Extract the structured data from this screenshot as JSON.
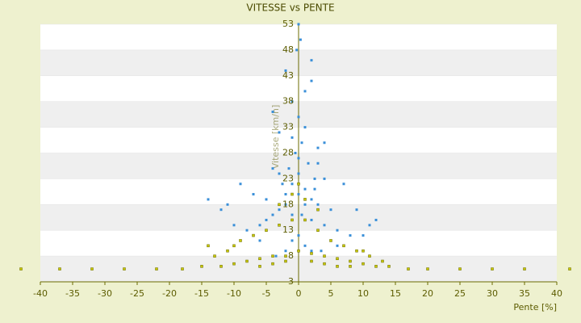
{
  "chart_data": {
    "type": "scatter",
    "title": "VITESSE vs PENTE",
    "x_label": "Pente [%]",
    "y_label": "Vitesse [km/h]",
    "xlim": [
      -40,
      40
    ],
    "xticks": [
      -40,
      -35,
      -30,
      -25,
      -20,
      -15,
      -10,
      -5,
      0,
      5,
      10,
      15,
      20,
      25,
      30,
      35,
      40
    ],
    "ylim": [
      3,
      53
    ],
    "yticks": [
      3,
      8,
      13,
      18,
      23,
      28,
      33,
      38,
      43,
      48,
      53
    ],
    "series": [
      {
        "color": "#3a8fd8",
        "x": [
          -2,
          -1,
          0,
          1,
          2,
          3,
          -3,
          -4,
          -5,
          0.5,
          -0.5,
          1.5,
          -1.5,
          2.5,
          -2.5,
          4,
          -6,
          6,
          0,
          -1,
          1,
          -3,
          3,
          -8,
          8,
          -10,
          10,
          -12,
          -14,
          12,
          -7,
          7,
          -2,
          2,
          0,
          0.3,
          -0.3,
          2,
          -4,
          4,
          0,
          1,
          -1,
          3,
          -3,
          2.5,
          -2,
          0.5,
          -5,
          5,
          -9,
          9,
          -11,
          11,
          1,
          -1,
          0,
          6,
          -6,
          2,
          -2,
          3.5,
          -3.5,
          0,
          1,
          -1,
          2,
          -0.5,
          4,
          -4
        ],
        "values": [
          20,
          22,
          24,
          21,
          19,
          18,
          17,
          16,
          15,
          30,
          28,
          26,
          25,
          23,
          22,
          14,
          14,
          13,
          35,
          38,
          40,
          32,
          29,
          13,
          12,
          14,
          12,
          17,
          19,
          15,
          20,
          22,
          44,
          46,
          53,
          50,
          48,
          42,
          36,
          30,
          27,
          33,
          31,
          26,
          24,
          21,
          18,
          16,
          19,
          17,
          22,
          17,
          18,
          14,
          10,
          11,
          12,
          10,
          11,
          9,
          9,
          9,
          8,
          20,
          18,
          16,
          15,
          28,
          23,
          25
        ]
      },
      {
        "color": "#c8c800",
        "x": [
          -43,
          -37,
          -32,
          -27,
          -22,
          -18,
          -15,
          -12,
          -10,
          -8,
          -6,
          -4,
          -2,
          0,
          2,
          4,
          6,
          8,
          10,
          12,
          14,
          17,
          20,
          25,
          30,
          35,
          42,
          -14,
          -11,
          -9,
          -7,
          -5,
          -3,
          -1,
          1,
          3,
          5,
          7,
          9,
          11,
          13,
          -6,
          -4,
          -2,
          2,
          4,
          6,
          8,
          -13,
          -10,
          10,
          -3,
          3,
          0,
          -1,
          1
        ],
        "values": [
          5.5,
          5.5,
          5.5,
          5.5,
          5.5,
          5.5,
          6,
          6,
          6.5,
          7,
          7.5,
          8,
          8,
          9,
          8.5,
          8,
          7.5,
          7,
          6.5,
          6,
          6,
          5.5,
          5.5,
          5.5,
          5.5,
          5.5,
          5.5,
          10,
          9,
          11,
          12,
          13,
          14,
          15,
          15,
          13,
          11,
          10,
          9,
          8,
          7,
          6,
          6.5,
          7,
          7,
          6.5,
          6,
          6,
          8,
          10,
          9,
          18,
          17,
          22,
          20,
          19
        ]
      }
    ]
  }
}
